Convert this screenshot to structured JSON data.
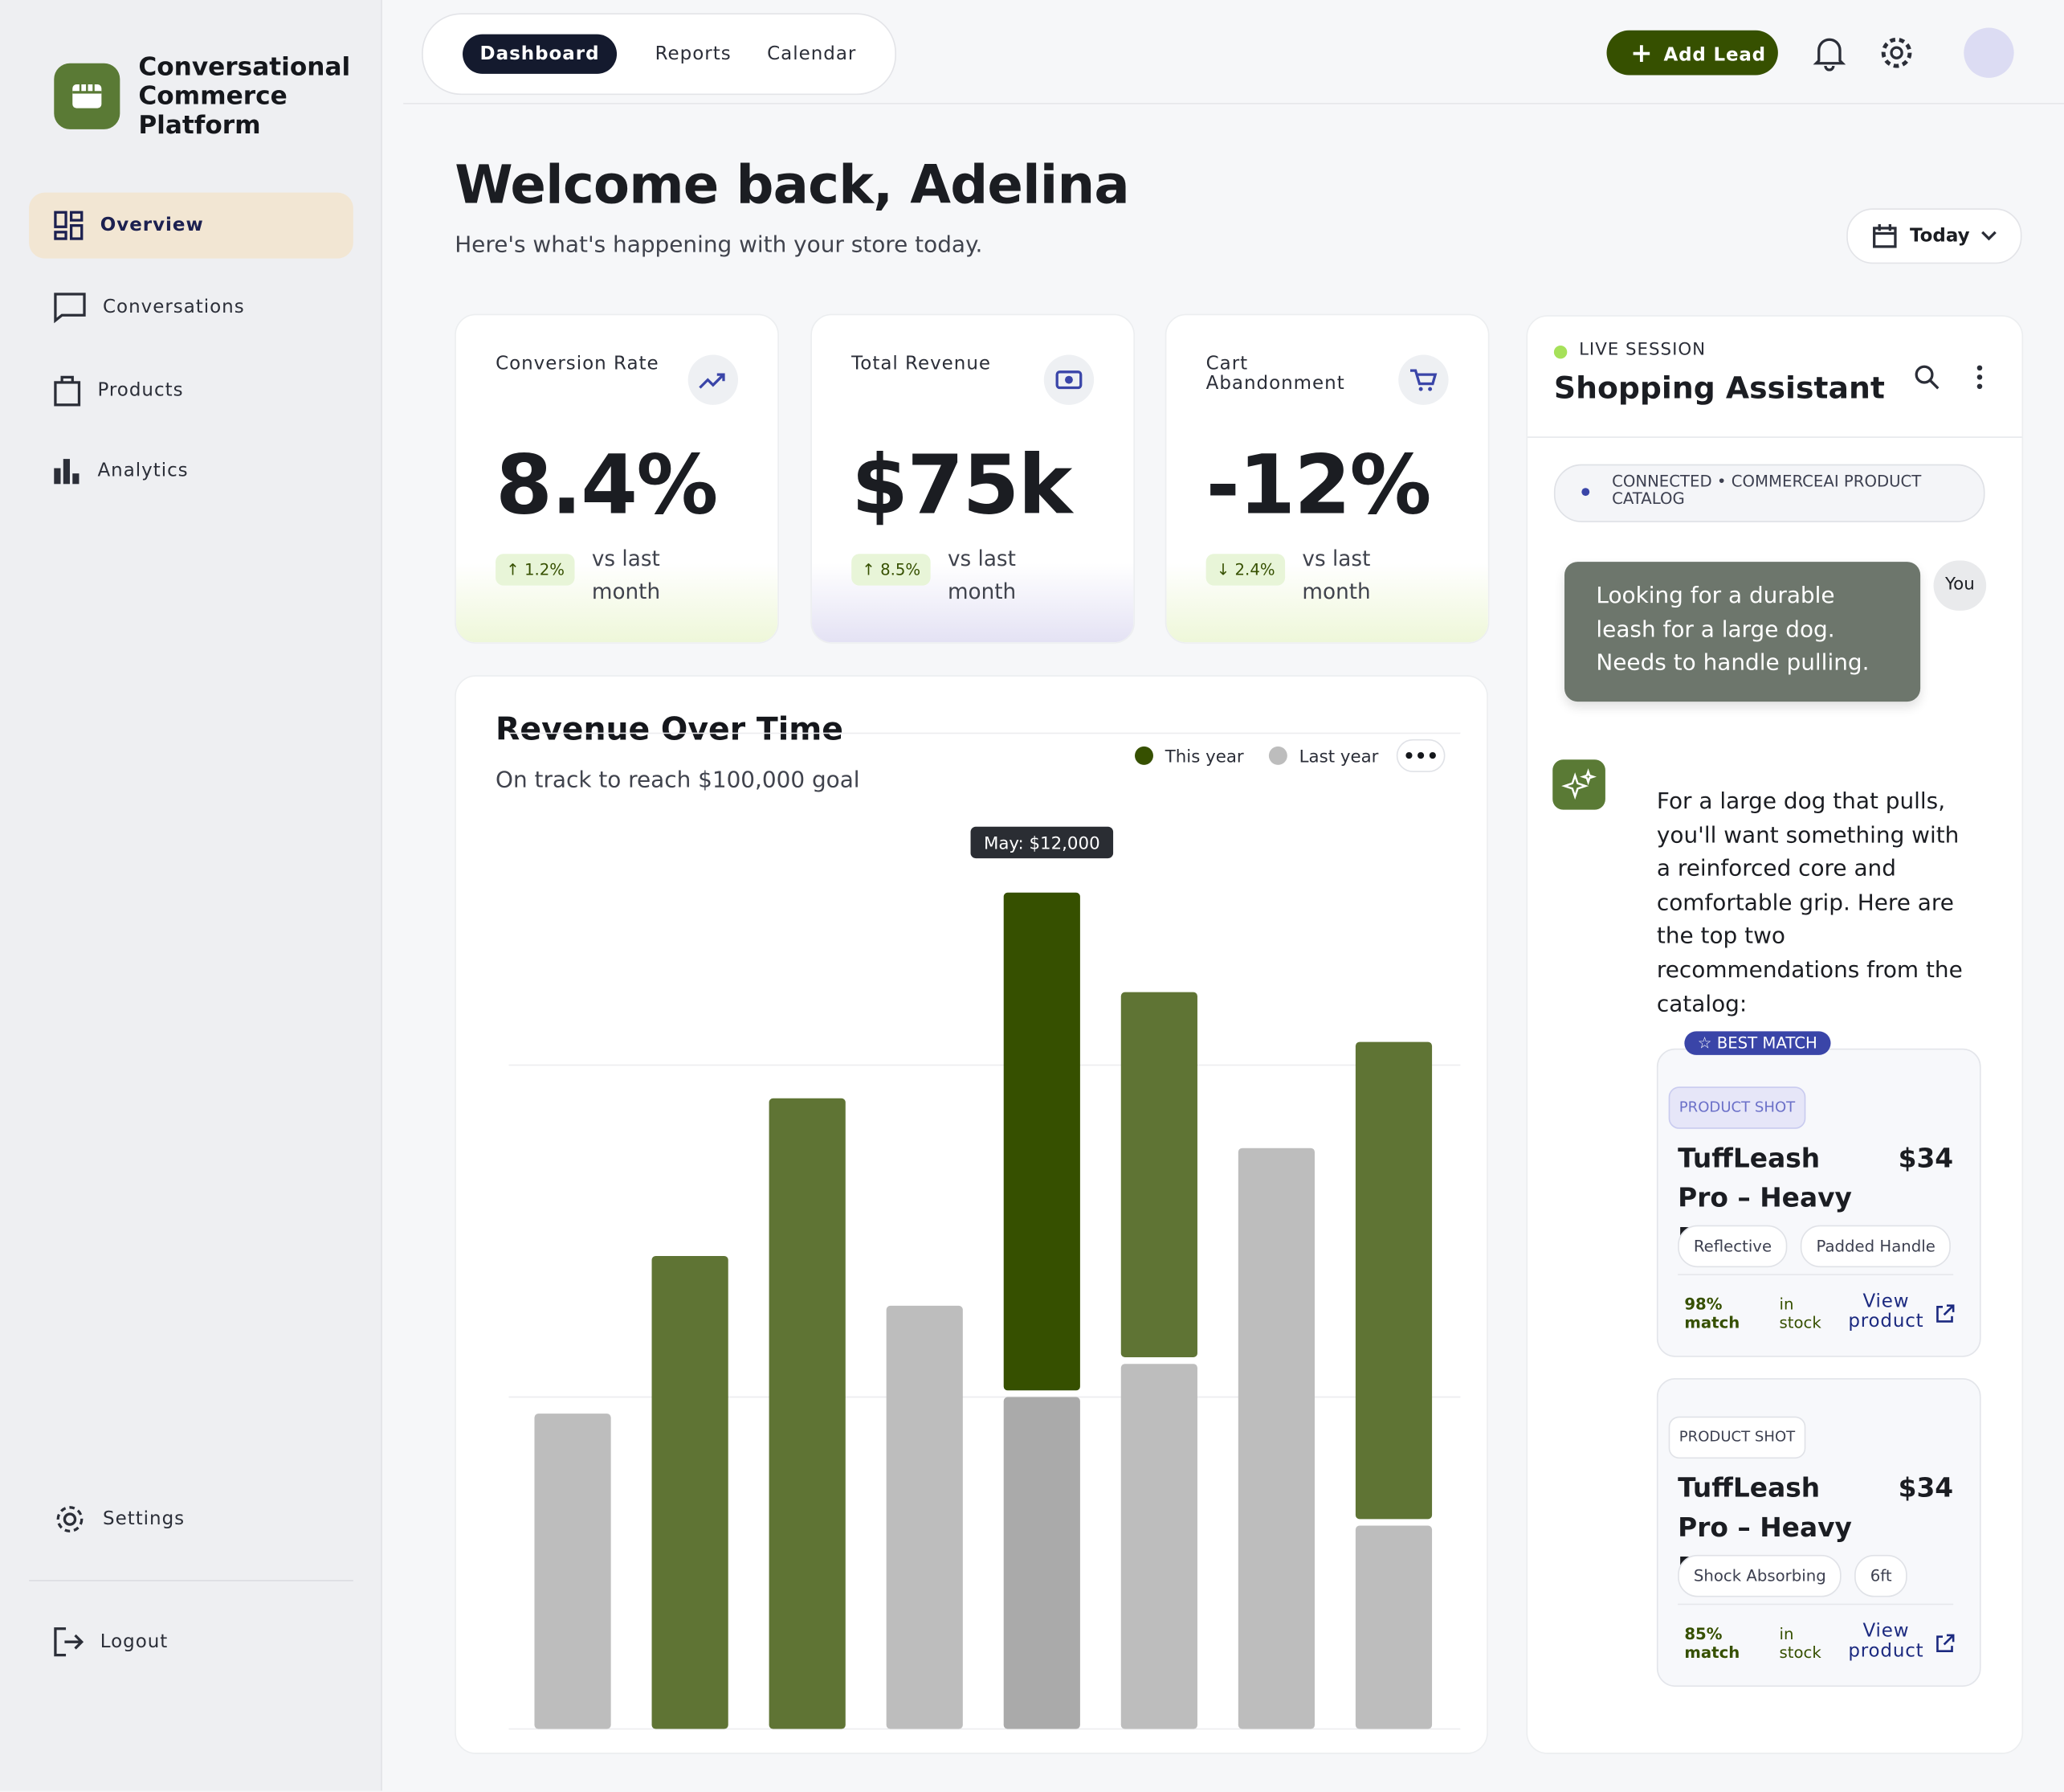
{
  "sidebar": {
    "brand": "Conversational Commerce Platform",
    "nav": [
      "Overview",
      "Conversations",
      "Products",
      "Analytics"
    ],
    "settings": "Settings",
    "logout": "Logout"
  },
  "topbar": {
    "tabs": [
      "Dashboard",
      "Reports",
      "Calendar"
    ],
    "add_lead": "Add Lead"
  },
  "header": {
    "title": "Welcome back, Adelina",
    "subtitle": "Here's what's happening with your store today.",
    "date_filter": "Today"
  },
  "kpis": [
    {
      "label": "Conversion Rate",
      "value": "8.4%",
      "change": "1.2%",
      "comparison": "vs last month"
    },
    {
      "label": "Total Revenue",
      "value": "$75k",
      "change": "8.5%",
      "comparison": "vs last month"
    },
    {
      "label": "Cart Abandonment",
      "value": "-12%",
      "change": "2.4%",
      "comparison": "vs last month"
    }
  ],
  "chart_data": {
    "type": "bar",
    "title": "Revenue Over Time",
    "subtitle": "On track to reach $100,000 goal",
    "stacked": true,
    "categories": [
      null,
      null,
      null,
      null,
      null,
      null,
      null,
      null
    ],
    "series": [
      {
        "name": "Last year",
        "color": "#bdbdbd",
        "highlight_color": "#aaaaaa",
        "values": [
          7600,
          null,
          null,
          10200,
          8000,
          8800,
          14000,
          4900
        ]
      },
      {
        "name": "This year",
        "color": "#5f7434",
        "highlight_color": "#365000",
        "values": [
          null,
          11400,
          15200,
          null,
          12000,
          8800,
          null,
          11500
        ]
      }
    ],
    "highlight_index": 4,
    "tooltip": "May: $12,000",
    "ylim": [
      0,
      24000
    ],
    "yticks": [
      8000,
      16000,
      24000
    ],
    "grid": true
  },
  "assistant": {
    "status": "LIVE SESSION",
    "title": "Shopping Assistant",
    "connection": "CONNECTED • COMMERCEAI PRODUCT CATALOG",
    "user_label": "You",
    "user_message": "Looking for a durable leash for a large dog. Needs to handle pulling.",
    "reply": "For a large dog that pulls, you'll want something with a reinforced core and comfortable grip. Here are the top two recommendations from the catalog:",
    "badge": "BEST MATCH",
    "products": [
      {
        "image_label": "PRODUCT SHOT",
        "name": "TuffLeash Pro – Heavy Duty",
        "price": "$34",
        "tags": [
          "Reflective",
          "Padded Handle"
        ],
        "match": "98% match",
        "stock": "in stock",
        "link": "View product"
      },
      {
        "image_label": "PRODUCT SHOT",
        "name": "TuffLeash Pro – Heavy Duty",
        "price": "$34",
        "tags": [
          "Shock Absorbing",
          "6ft"
        ],
        "match": "85% match",
        "stock": "in stock",
        "link": "View product"
      }
    ]
  }
}
